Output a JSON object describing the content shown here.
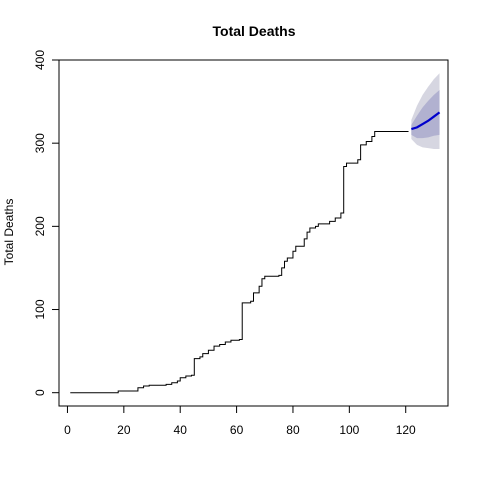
{
  "chart_data": {
    "type": "line",
    "title": "Total Deaths",
    "xlabel": "",
    "ylabel": "Total Deaths",
    "xlim": [
      -3,
      135
    ],
    "ylim": [
      -16,
      400
    ],
    "x_ticks": [
      0,
      20,
      40,
      60,
      80,
      100,
      120
    ],
    "y_ticks": [
      0,
      100,
      200,
      300,
      400
    ],
    "grid": false,
    "series": [
      {
        "type": "step",
        "color": "#000000",
        "points": [
          [
            1,
            0
          ],
          [
            17,
            0
          ],
          [
            18,
            2
          ],
          [
            24,
            2
          ],
          [
            25,
            6
          ],
          [
            27,
            8
          ],
          [
            29,
            9
          ],
          [
            35,
            10
          ],
          [
            37,
            12
          ],
          [
            39,
            14
          ],
          [
            40,
            18
          ],
          [
            42,
            20
          ],
          [
            44,
            21
          ],
          [
            45,
            41
          ],
          [
            47,
            43
          ],
          [
            48,
            47
          ],
          [
            50,
            51
          ],
          [
            52,
            56
          ],
          [
            54,
            58
          ],
          [
            56,
            61
          ],
          [
            58,
            63
          ],
          [
            61,
            64
          ],
          [
            62,
            108
          ],
          [
            65,
            110
          ],
          [
            66,
            120
          ],
          [
            68,
            128
          ],
          [
            69,
            137
          ],
          [
            70,
            140
          ],
          [
            75,
            141
          ],
          [
            76,
            150
          ],
          [
            77,
            158
          ],
          [
            78,
            162
          ],
          [
            80,
            170
          ],
          [
            81,
            176
          ],
          [
            84,
            185
          ],
          [
            85,
            193
          ],
          [
            86,
            198
          ],
          [
            88,
            200
          ],
          [
            89,
            203
          ],
          [
            93,
            206
          ],
          [
            95,
            210
          ],
          [
            97,
            216
          ],
          [
            98,
            272
          ],
          [
            99,
            276
          ],
          [
            103,
            280
          ],
          [
            104,
            298
          ],
          [
            106,
            302
          ],
          [
            108,
            308
          ],
          [
            109,
            314
          ],
          [
            121,
            314
          ]
        ]
      },
      {
        "type": "forecast-mean",
        "color": "#0000cc",
        "points": [
          [
            122,
            317
          ],
          [
            124,
            319
          ],
          [
            126,
            323
          ],
          [
            128,
            327
          ],
          [
            130,
            332
          ],
          [
            132,
            337
          ]
        ]
      }
    ],
    "forecast_bands": [
      {
        "level": "95%",
        "color": "#d6d6e1",
        "x": [
          122,
          124,
          126,
          128,
          130,
          132
        ],
        "lower": [
          305,
          298,
          295,
          294,
          293,
          293
        ],
        "upper": [
          328,
          345,
          358,
          368,
          377,
          384
        ]
      },
      {
        "level": "80%",
        "color": "#b1b1d0",
        "x": [
          122,
          124,
          126,
          128,
          130,
          132
        ],
        "lower": [
          310,
          306,
          306,
          307,
          309,
          310
        ],
        "upper": [
          322,
          333,
          343,
          351,
          358,
          364
        ]
      }
    ]
  }
}
